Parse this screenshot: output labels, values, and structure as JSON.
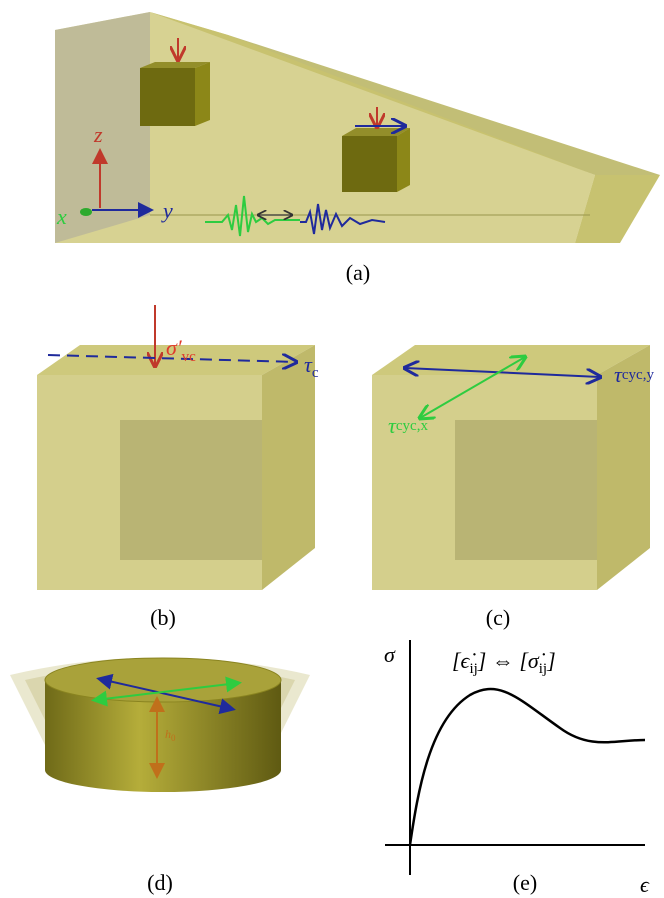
{
  "panels": {
    "a": {
      "label": "(a)",
      "axes": {
        "x": "x",
        "y": "y",
        "z": "z"
      }
    },
    "b": {
      "label": "(b)",
      "normal_stress": {
        "symbol": "σ′",
        "subscript": "vc"
      },
      "shear_stress": {
        "symbol": "τ",
        "subscript": "c"
      }
    },
    "c": {
      "label": "(c)",
      "shear_x": {
        "symbol": "τ",
        "subscript": "cyc,x"
      },
      "shear_y": {
        "symbol": "τ",
        "subscript": "cyc,y"
      }
    },
    "d": {
      "label": "(d)",
      "height": {
        "symbol": "h",
        "subscript": "0"
      }
    },
    "e": {
      "label": "(e)",
      "y_axis": "σ",
      "x_axis": "ϵ",
      "relation": {
        "left": "[ϵ̇",
        "left_sub": "ij",
        "middle": "] ⇔ [σ̇",
        "right_sub": "ij",
        "end": "]"
      }
    }
  }
}
